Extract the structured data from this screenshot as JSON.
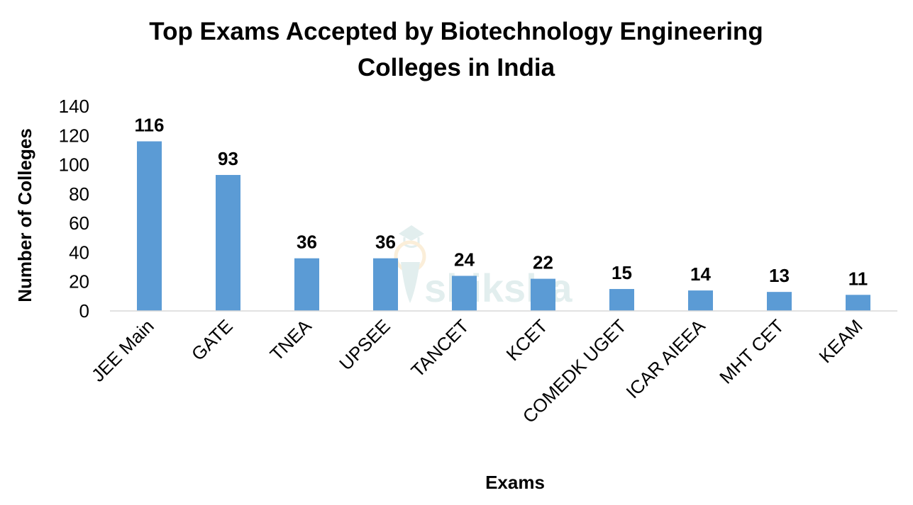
{
  "chart_data": {
    "type": "bar",
    "title": "Top Exams Accepted by Biotechnology Engineering Colleges in India",
    "title_lines": [
      "Top Exams Accepted by Biotechnology Engineering",
      "Colleges in India"
    ],
    "xlabel": "Exams",
    "ylabel": "Number of Colleges",
    "categories": [
      "JEE Main",
      "GATE",
      "TNEA",
      "UPSEE",
      "TANCET",
      "KCET",
      "COMEDK UGET",
      "ICAR AIEEA",
      "MHT CET",
      "KEAM"
    ],
    "values": [
      116,
      93,
      36,
      36,
      24,
      22,
      15,
      14,
      13,
      11
    ],
    "ylim": [
      0,
      140
    ],
    "yticks": [
      0,
      20,
      40,
      60,
      80,
      100,
      120,
      140
    ],
    "grid": false,
    "data_labels": true,
    "bar_color": "#5b9bd5",
    "watermark": "shiksha"
  }
}
